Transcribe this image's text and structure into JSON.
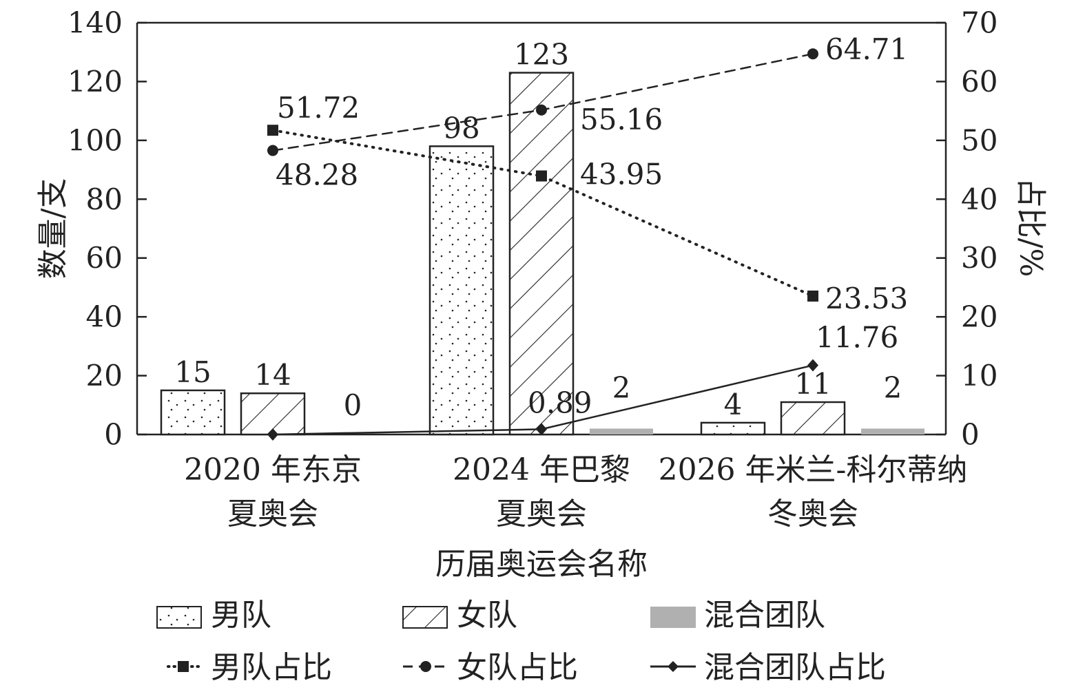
{
  "chart_data": {
    "type": "bar",
    "categories": [
      [
        "2020 年东京",
        "夏奥会"
      ],
      [
        "2024 年巴黎",
        "夏奥会"
      ],
      [
        "2026 年米兰-科尔蒂纳",
        "冬奥会"
      ]
    ],
    "xlabel": "历届奥运会名称",
    "ylabel": "数量/支",
    "y2label": "占比/%",
    "ylim": [
      0,
      140
    ],
    "y2lim": [
      0,
      70
    ],
    "yticks": [
      0,
      20,
      40,
      60,
      80,
      100,
      120,
      140
    ],
    "y2ticks": [
      0,
      10,
      20,
      30,
      40,
      50,
      60,
      70
    ],
    "bar_series": [
      {
        "name": "男队",
        "values": [
          15,
          98,
          4
        ],
        "labels": [
          "15",
          "98",
          "4"
        ],
        "pattern": "dots"
      },
      {
        "name": "女队",
        "values": [
          14,
          123,
          11
        ],
        "labels": [
          "14",
          "123",
          "11"
        ],
        "pattern": "hatch"
      },
      {
        "name": "混合团队",
        "values": [
          0,
          2,
          2
        ],
        "labels": [
          "0",
          "2",
          "2"
        ],
        "color": "#b0b0b0"
      }
    ],
    "line_series": [
      {
        "name": "男队占比",
        "values": [
          51.72,
          43.95,
          23.53
        ],
        "labels": [
          "51.72",
          "43.95",
          "23.53"
        ],
        "style": "dotted",
        "marker": "square"
      },
      {
        "name": "女队占比",
        "values": [
          48.28,
          55.16,
          64.71
        ],
        "labels": [
          "48.28",
          "55.16",
          "64.71"
        ],
        "style": "dashed",
        "marker": "circle"
      },
      {
        "name": "混合团队占比",
        "values": [
          0,
          0.89,
          11.76
        ],
        "labels": [
          "",
          "0.89",
          "11.76"
        ],
        "style": "solid",
        "marker": "diamond"
      }
    ],
    "legend": "bottom",
    "grid": false
  }
}
